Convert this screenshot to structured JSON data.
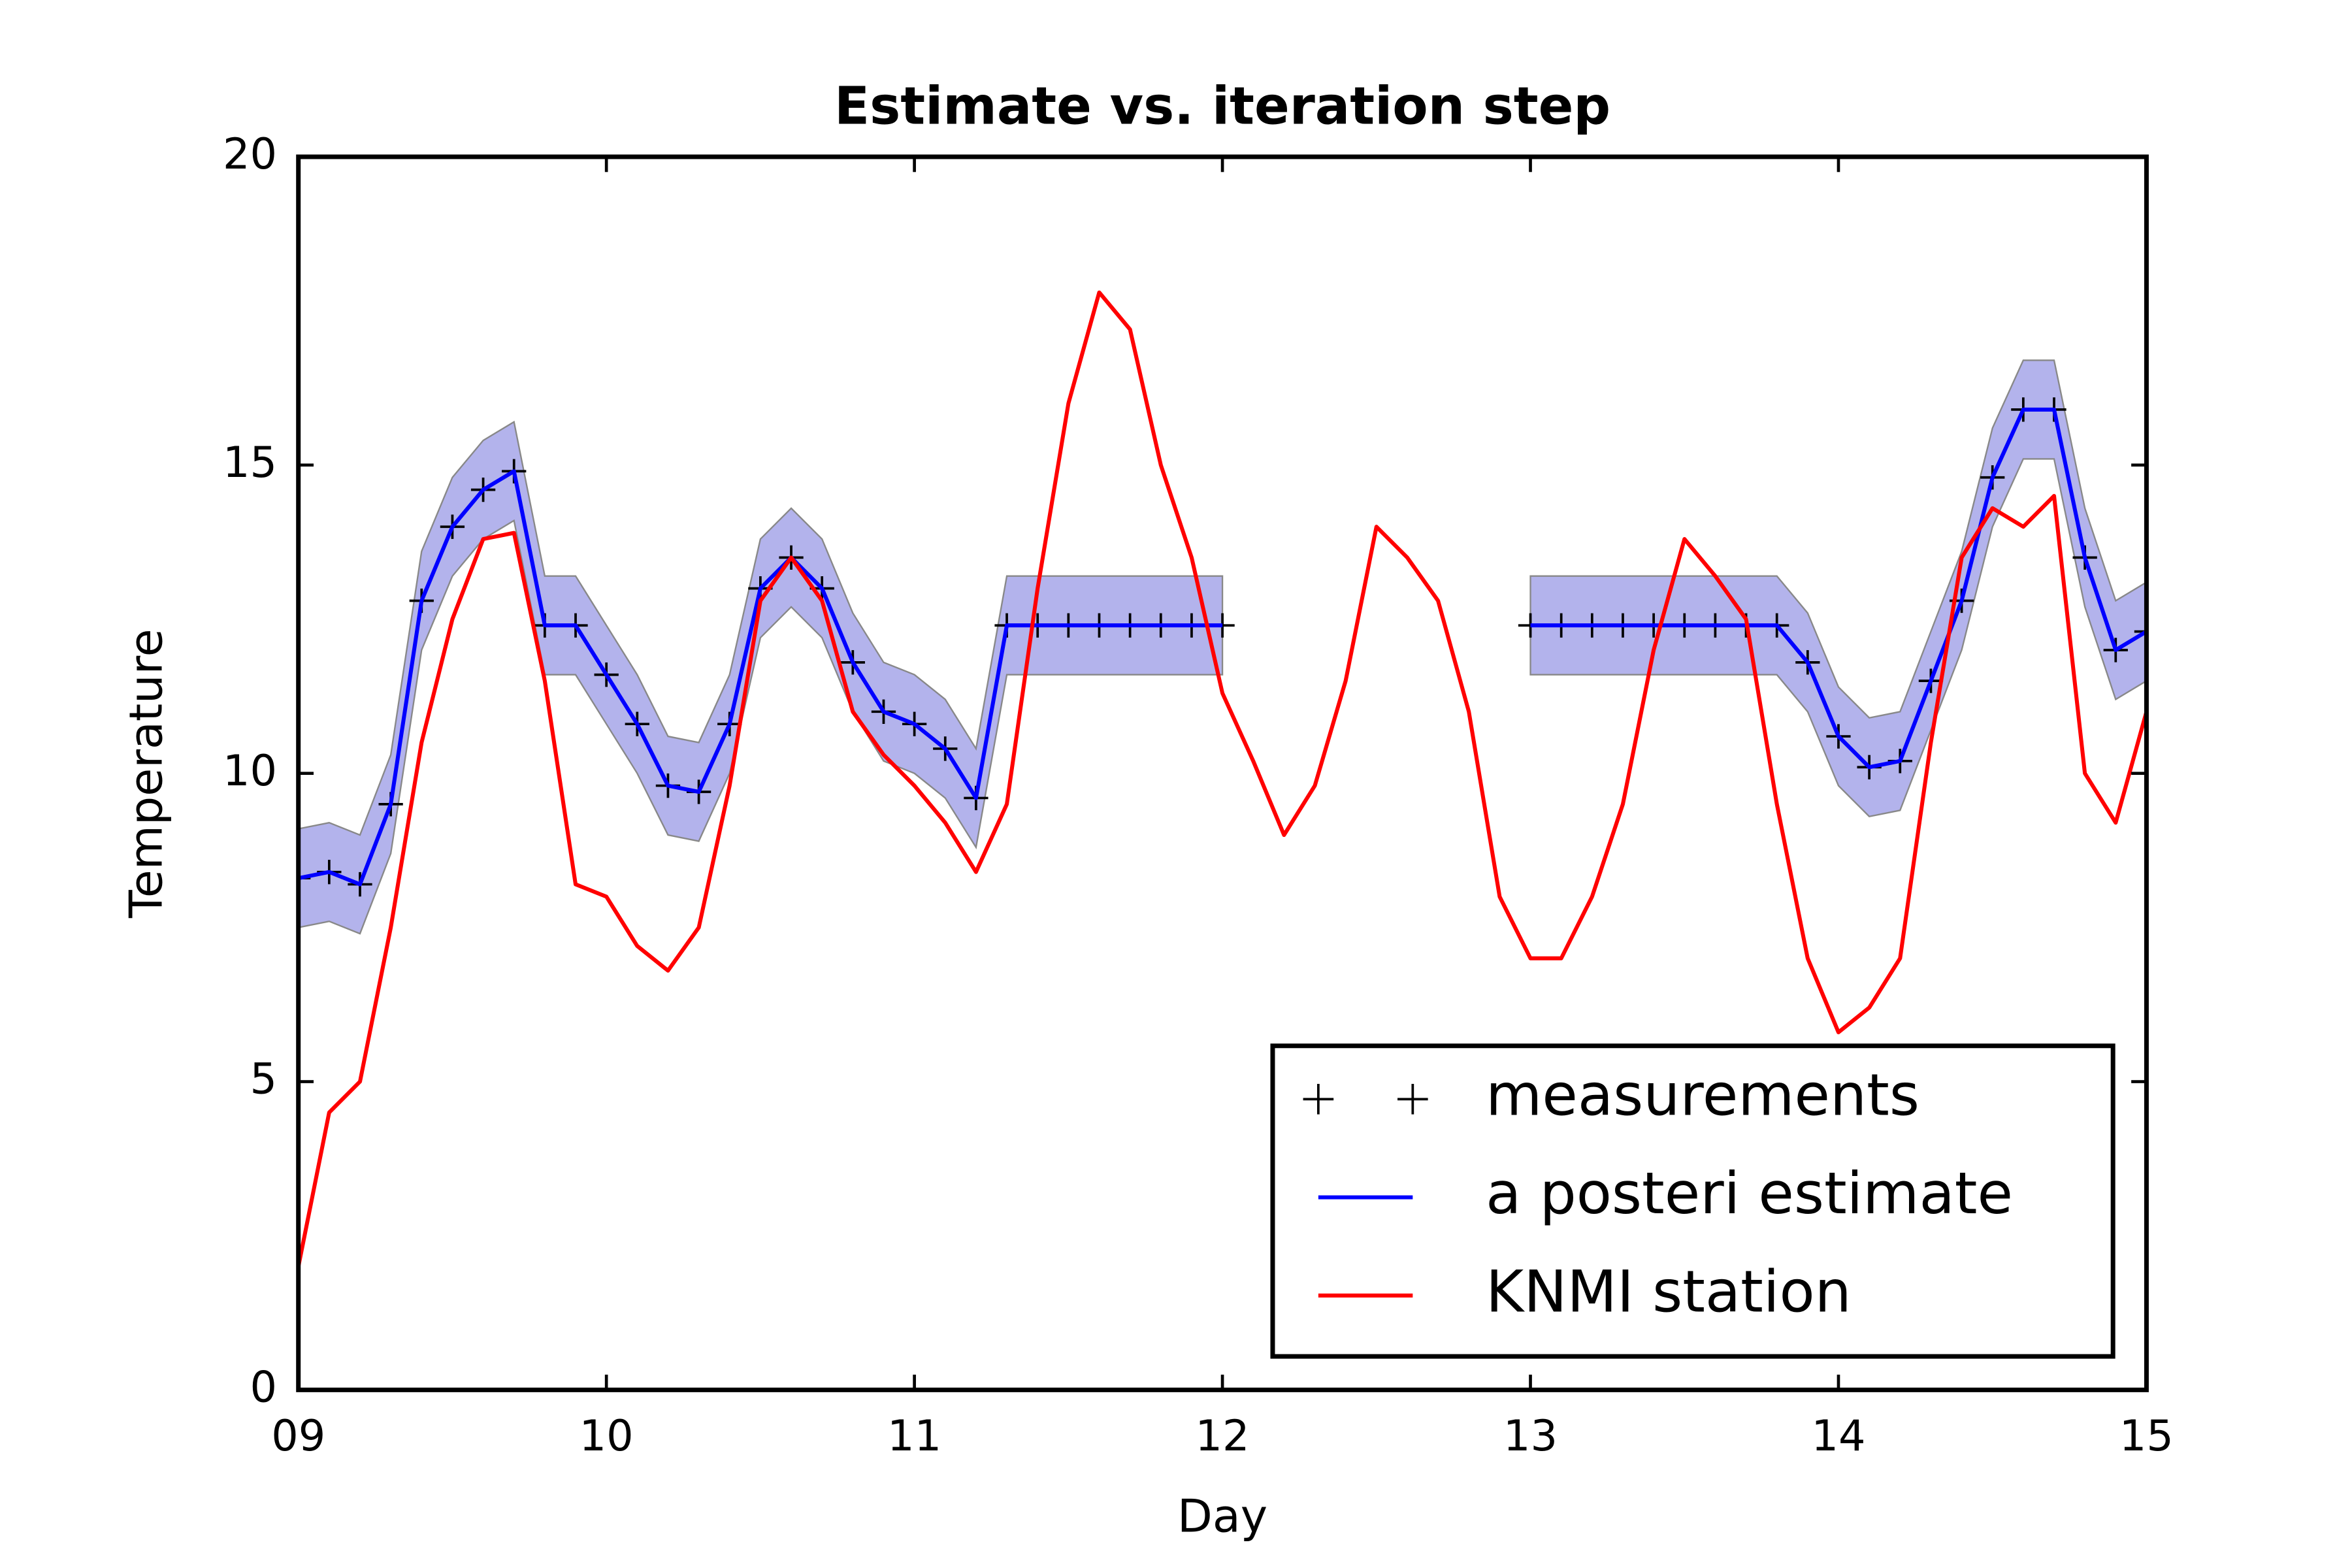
{
  "chart_data": {
    "type": "line",
    "title": "Estimate vs. iteration step",
    "x_label": "Day",
    "y_label": "Temperature",
    "xlim": [
      9,
      15
    ],
    "ylim": [
      0,
      20
    ],
    "xticks": [
      {
        "value": 9,
        "label": "09"
      },
      10,
      11,
      12,
      13,
      14,
      15
    ],
    "yticks": [
      0,
      5,
      10,
      15,
      20
    ],
    "legend": "lower right",
    "x": [
      9.0,
      9.1,
      9.2,
      9.3,
      9.4,
      9.5,
      9.6,
      9.7,
      9.8,
      9.9,
      10.0,
      10.1,
      10.2,
      10.3,
      10.4,
      10.5,
      10.6,
      10.7,
      10.8,
      10.9,
      11.0,
      11.1,
      11.2,
      11.3,
      11.4,
      11.5,
      11.6,
      11.7,
      11.8,
      11.9,
      12.0,
      12.1,
      12.2,
      12.3,
      12.4,
      12.5,
      12.6,
      12.7,
      12.8,
      12.9,
      13.0,
      13.1,
      13.2,
      13.3,
      13.4,
      13.5,
      13.6,
      13.7,
      13.8,
      13.9,
      14.0,
      14.1,
      14.2,
      14.3,
      14.4,
      14.5,
      14.6,
      14.7,
      14.8,
      14.9,
      15.0
    ],
    "series": [
      {
        "name": "measurements",
        "color": "#000000",
        "marker": "+",
        "values": [
          8.3,
          8.4,
          8.2,
          9.5,
          12.8,
          14.0,
          14.6,
          14.9,
          12.4,
          12.4,
          11.6,
          10.8,
          9.8,
          9.7,
          10.8,
          13.0,
          13.5,
          13.0,
          11.8,
          11.0,
          10.8,
          10.4,
          9.6,
          12.4,
          12.4,
          12.4,
          12.4,
          12.4,
          12.4,
          12.4,
          12.4,
          null,
          null,
          null,
          null,
          null,
          null,
          null,
          null,
          null,
          12.4,
          12.4,
          12.4,
          12.4,
          12.4,
          12.4,
          12.4,
          12.4,
          12.4,
          11.8,
          10.6,
          10.1,
          10.2,
          11.5,
          12.8,
          14.8,
          15.9,
          15.9,
          13.5,
          12.0,
          12.3
        ]
      },
      {
        "name": "a posteri estimate",
        "color": "#0000ff",
        "band": 0.8,
        "band_color": "#8080e0",
        "values": [
          8.3,
          8.4,
          8.2,
          9.5,
          12.8,
          14.0,
          14.6,
          14.9,
          12.4,
          12.4,
          11.6,
          10.8,
          9.8,
          9.7,
          10.8,
          13.0,
          13.5,
          13.0,
          11.8,
          11.0,
          10.8,
          10.4,
          9.6,
          12.4,
          12.4,
          12.4,
          12.4,
          12.4,
          12.4,
          12.4,
          12.4,
          null,
          null,
          null,
          null,
          null,
          null,
          null,
          null,
          null,
          12.4,
          12.4,
          12.4,
          12.4,
          12.4,
          12.4,
          12.4,
          12.4,
          12.4,
          11.8,
          10.6,
          10.1,
          10.2,
          11.5,
          12.8,
          14.8,
          15.9,
          15.9,
          13.5,
          12.0,
          12.3
        ]
      },
      {
        "name": "KNMI station",
        "color": "#ff0000",
        "values": [
          2.0,
          4.5,
          5.0,
          7.5,
          10.5,
          12.5,
          13.8,
          13.9,
          11.5,
          8.2,
          8.0,
          7.2,
          6.8,
          7.5,
          9.8,
          12.8,
          13.5,
          12.8,
          11.0,
          10.3,
          9.8,
          9.2,
          8.4,
          9.5,
          13.0,
          16.0,
          17.8,
          17.2,
          15.0,
          13.5,
          11.3,
          10.2,
          9.0,
          9.8,
          11.5,
          14.0,
          13.5,
          12.8,
          11.0,
          8.0,
          7.0,
          7.0,
          8.0,
          9.5,
          12.0,
          13.8,
          13.2,
          12.5,
          9.5,
          7.0,
          5.8,
          6.2,
          7.0,
          10.5,
          13.5,
          14.3,
          14.0,
          14.5,
          10.0,
          9.2,
          11.0
        ]
      }
    ]
  }
}
